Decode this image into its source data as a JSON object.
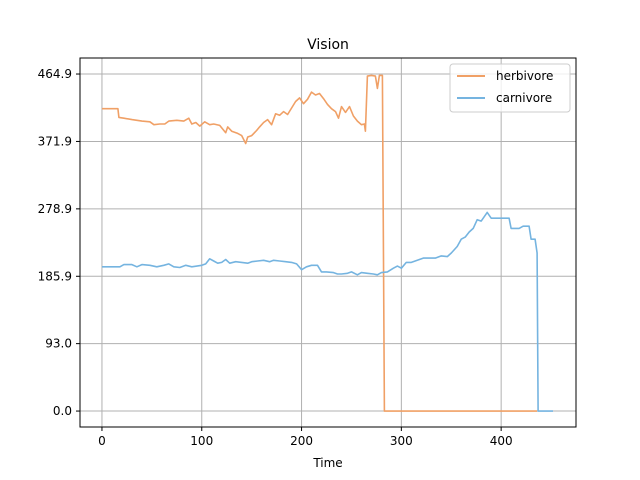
{
  "chart_data": {
    "type": "line",
    "title": "Vision",
    "xlabel": "Time",
    "ylabel": "",
    "xlim": [
      -22,
      475
    ],
    "ylim": [
      -22,
      487
    ],
    "xticks": [
      0,
      100,
      200,
      300,
      400
    ],
    "xtick_labels": [
      "0",
      "100",
      "200",
      "300",
      "400"
    ],
    "yticks": [
      0.0,
      93.0,
      185.9,
      278.9,
      371.9,
      464.9
    ],
    "ytick_labels": [
      "0.0",
      "93.0",
      "185.9",
      "278.9",
      "371.9",
      "464.9"
    ],
    "grid": true,
    "legend_position": "top-right",
    "series": [
      {
        "name": "herbivore",
        "color": "#f0a066",
        "points": [
          [
            0,
            417
          ],
          [
            8,
            417
          ],
          [
            16,
            417
          ],
          [
            17,
            405
          ],
          [
            22,
            404
          ],
          [
            30,
            402
          ],
          [
            40,
            400
          ],
          [
            48,
            399
          ],
          [
            52,
            395
          ],
          [
            58,
            396
          ],
          [
            63,
            396
          ],
          [
            67,
            400
          ],
          [
            75,
            401
          ],
          [
            82,
            400
          ],
          [
            87,
            404
          ],
          [
            90,
            396
          ],
          [
            94,
            398
          ],
          [
            98,
            393
          ],
          [
            103,
            399
          ],
          [
            108,
            395
          ],
          [
            112,
            396
          ],
          [
            118,
            394
          ],
          [
            124,
            384
          ],
          [
            126,
            392
          ],
          [
            130,
            386
          ],
          [
            136,
            383
          ],
          [
            140,
            380
          ],
          [
            144,
            369
          ],
          [
            146,
            378
          ],
          [
            150,
            380
          ],
          [
            155,
            387
          ],
          [
            158,
            392
          ],
          [
            162,
            398
          ],
          [
            166,
            402
          ],
          [
            170,
            395
          ],
          [
            174,
            410
          ],
          [
            178,
            408
          ],
          [
            182,
            413
          ],
          [
            186,
            409
          ],
          [
            190,
            418
          ],
          [
            194,
            427
          ],
          [
            198,
            432
          ],
          [
            202,
            424
          ],
          [
            206,
            430
          ],
          [
            210,
            440
          ],
          [
            214,
            436
          ],
          [
            218,
            438
          ],
          [
            222,
            431
          ],
          [
            226,
            423
          ],
          [
            230,
            417
          ],
          [
            234,
            413
          ],
          [
            237,
            404
          ],
          [
            240,
            420
          ],
          [
            244,
            412
          ],
          [
            248,
            420
          ],
          [
            252,
            407
          ],
          [
            256,
            400
          ],
          [
            260,
            395
          ],
          [
            263,
            396
          ],
          [
            264,
            386
          ],
          [
            266,
            462
          ],
          [
            270,
            463
          ],
          [
            274,
            462
          ],
          [
            276,
            445
          ],
          [
            278,
            463
          ],
          [
            281,
            463
          ],
          [
            283,
            0
          ],
          [
            300,
            0
          ],
          [
            350,
            0
          ],
          [
            400,
            0
          ],
          [
            436,
            0
          ]
        ]
      },
      {
        "name": "carnivore",
        "color": "#75b4e0",
        "points": [
          [
            0,
            199
          ],
          [
            10,
            199
          ],
          [
            18,
            199
          ],
          [
            22,
            202
          ],
          [
            30,
            202
          ],
          [
            35,
            199
          ],
          [
            40,
            202
          ],
          [
            48,
            201
          ],
          [
            55,
            199
          ],
          [
            62,
            201
          ],
          [
            67,
            203
          ],
          [
            72,
            199
          ],
          [
            78,
            198
          ],
          [
            84,
            201
          ],
          [
            90,
            199
          ],
          [
            95,
            200
          ],
          [
            100,
            201
          ],
          [
            104,
            203
          ],
          [
            108,
            210
          ],
          [
            112,
            207
          ],
          [
            116,
            204
          ],
          [
            120,
            205
          ],
          [
            124,
            209
          ],
          [
            128,
            204
          ],
          [
            134,
            206
          ],
          [
            140,
            205
          ],
          [
            146,
            204
          ],
          [
            150,
            206
          ],
          [
            156,
            207
          ],
          [
            162,
            208
          ],
          [
            168,
            206
          ],
          [
            172,
            208
          ],
          [
            178,
            207
          ],
          [
            184,
            206
          ],
          [
            190,
            205
          ],
          [
            195,
            203
          ],
          [
            200,
            195
          ],
          [
            205,
            199
          ],
          [
            210,
            201
          ],
          [
            216,
            201
          ],
          [
            220,
            192
          ],
          [
            225,
            192
          ],
          [
            232,
            191
          ],
          [
            236,
            189
          ],
          [
            240,
            189
          ],
          [
            246,
            190
          ],
          [
            250,
            192
          ],
          [
            256,
            188
          ],
          [
            260,
            191
          ],
          [
            266,
            190
          ],
          [
            272,
            189
          ],
          [
            276,
            188
          ],
          [
            280,
            191
          ],
          [
            286,
            192
          ],
          [
            292,
            197
          ],
          [
            296,
            200
          ],
          [
            300,
            197
          ],
          [
            305,
            205
          ],
          [
            310,
            205
          ],
          [
            316,
            208
          ],
          [
            322,
            211
          ],
          [
            328,
            211
          ],
          [
            334,
            211
          ],
          [
            340,
            214
          ],
          [
            346,
            213
          ],
          [
            350,
            218
          ],
          [
            356,
            227
          ],
          [
            360,
            237
          ],
          [
            364,
            240
          ],
          [
            368,
            247
          ],
          [
            372,
            252
          ],
          [
            376,
            264
          ],
          [
            380,
            262
          ],
          [
            384,
            270
          ],
          [
            386,
            274
          ],
          [
            390,
            266
          ],
          [
            400,
            266
          ],
          [
            408,
            266
          ],
          [
            410,
            252
          ],
          [
            418,
            252
          ],
          [
            422,
            255
          ],
          [
            428,
            255
          ],
          [
            430,
            237
          ],
          [
            434,
            237
          ],
          [
            436,
            218
          ],
          [
            437,
            0
          ],
          [
            445,
            0
          ],
          [
            452,
            0
          ]
        ]
      }
    ]
  }
}
